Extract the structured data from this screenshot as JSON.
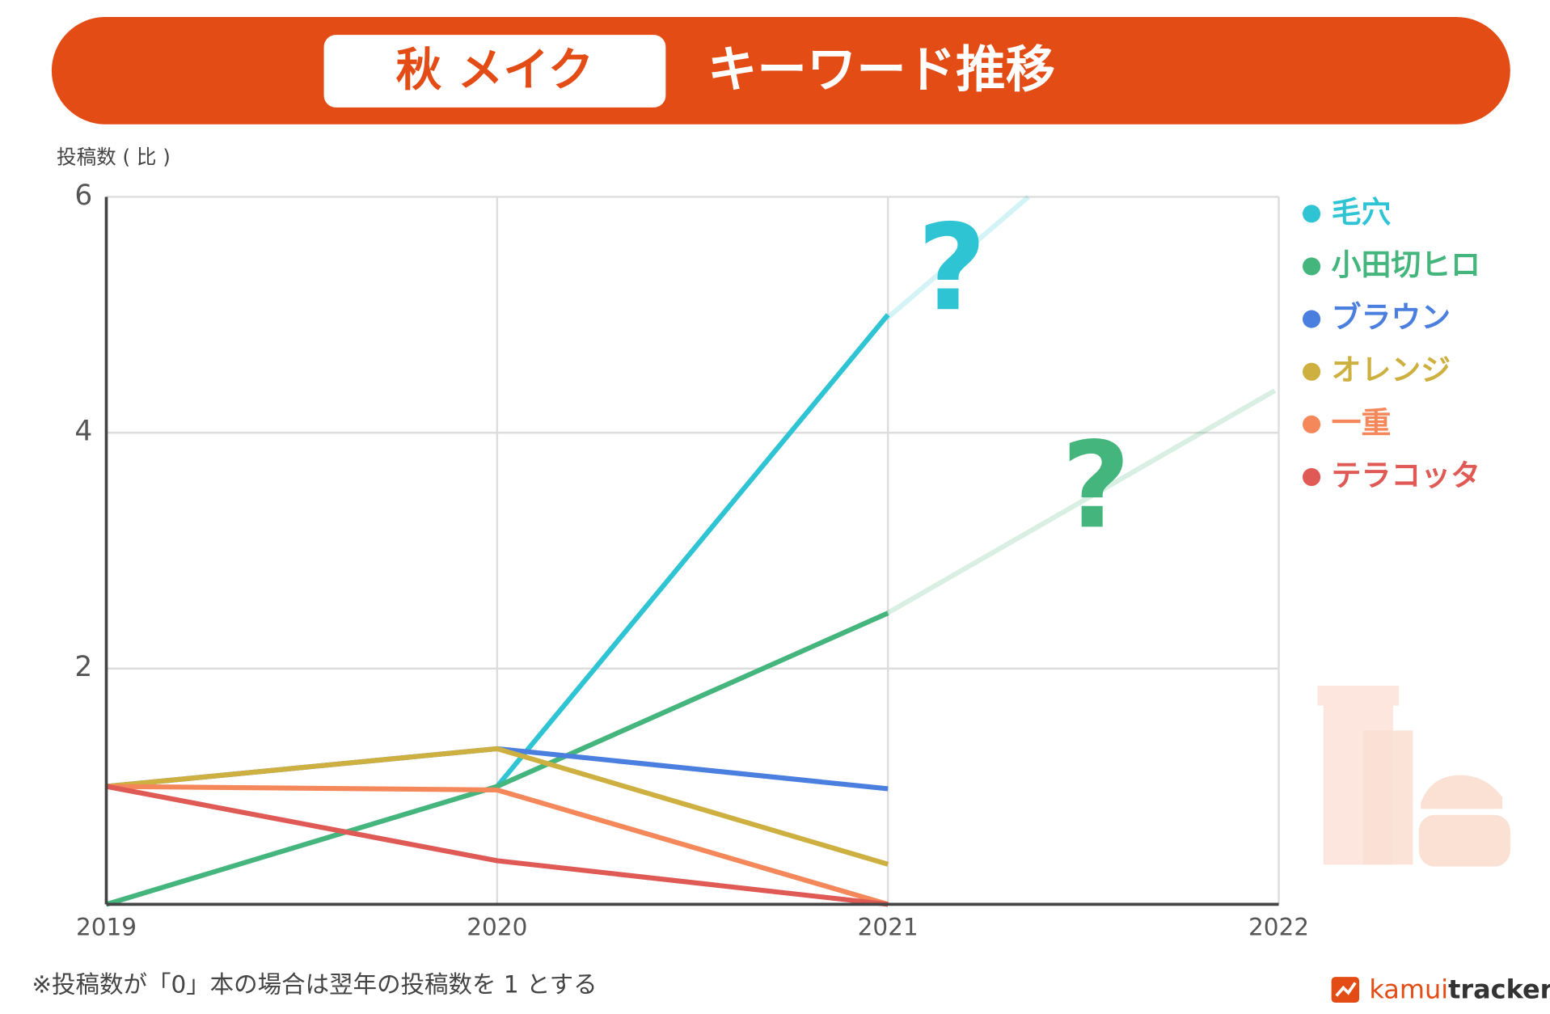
{
  "chart_data": {
    "type": "line",
    "title_keyword": "秋 メイク",
    "title": "キーワード推移",
    "y_label": "投稿数 ( 比 )",
    "x": [
      2019,
      2020,
      2021,
      2022
    ],
    "xlim": [
      2019,
      2022
    ],
    "xticks": [
      2019,
      2020,
      2021,
      2022
    ],
    "ylim": [
      0,
      6
    ],
    "yticks": [
      2,
      4,
      6
    ],
    "grid": true,
    "series": [
      {
        "name": "毛穴",
        "color": "#2ec4d4",
        "values": [
          null,
          1,
          5,
          null
        ]
      },
      {
        "name": "小田切ヒロ",
        "color": "#44b57c",
        "values": [
          0,
          1,
          2.47,
          null
        ]
      },
      {
        "name": "ブラウン",
        "color": "#4a7fdf",
        "values": [
          1,
          1.32,
          0.98,
          null
        ]
      },
      {
        "name": "オレンジ",
        "color": "#cdb03f",
        "values": [
          1,
          1.32,
          0.34,
          null
        ]
      },
      {
        "name": "一重",
        "color": "#f4885a",
        "values": [
          1,
          0.97,
          0,
          null
        ]
      },
      {
        "name": "テラコッタ",
        "color": "#e05a55",
        "values": [
          1,
          0.37,
          0,
          null
        ]
      }
    ],
    "annotations": [
      "?",
      "?"
    ],
    "footnote": "※投稿数が「0」本の場合は翌年の投稿数を 1 とする",
    "brand": [
      "kamui",
      "tracker"
    ]
  }
}
